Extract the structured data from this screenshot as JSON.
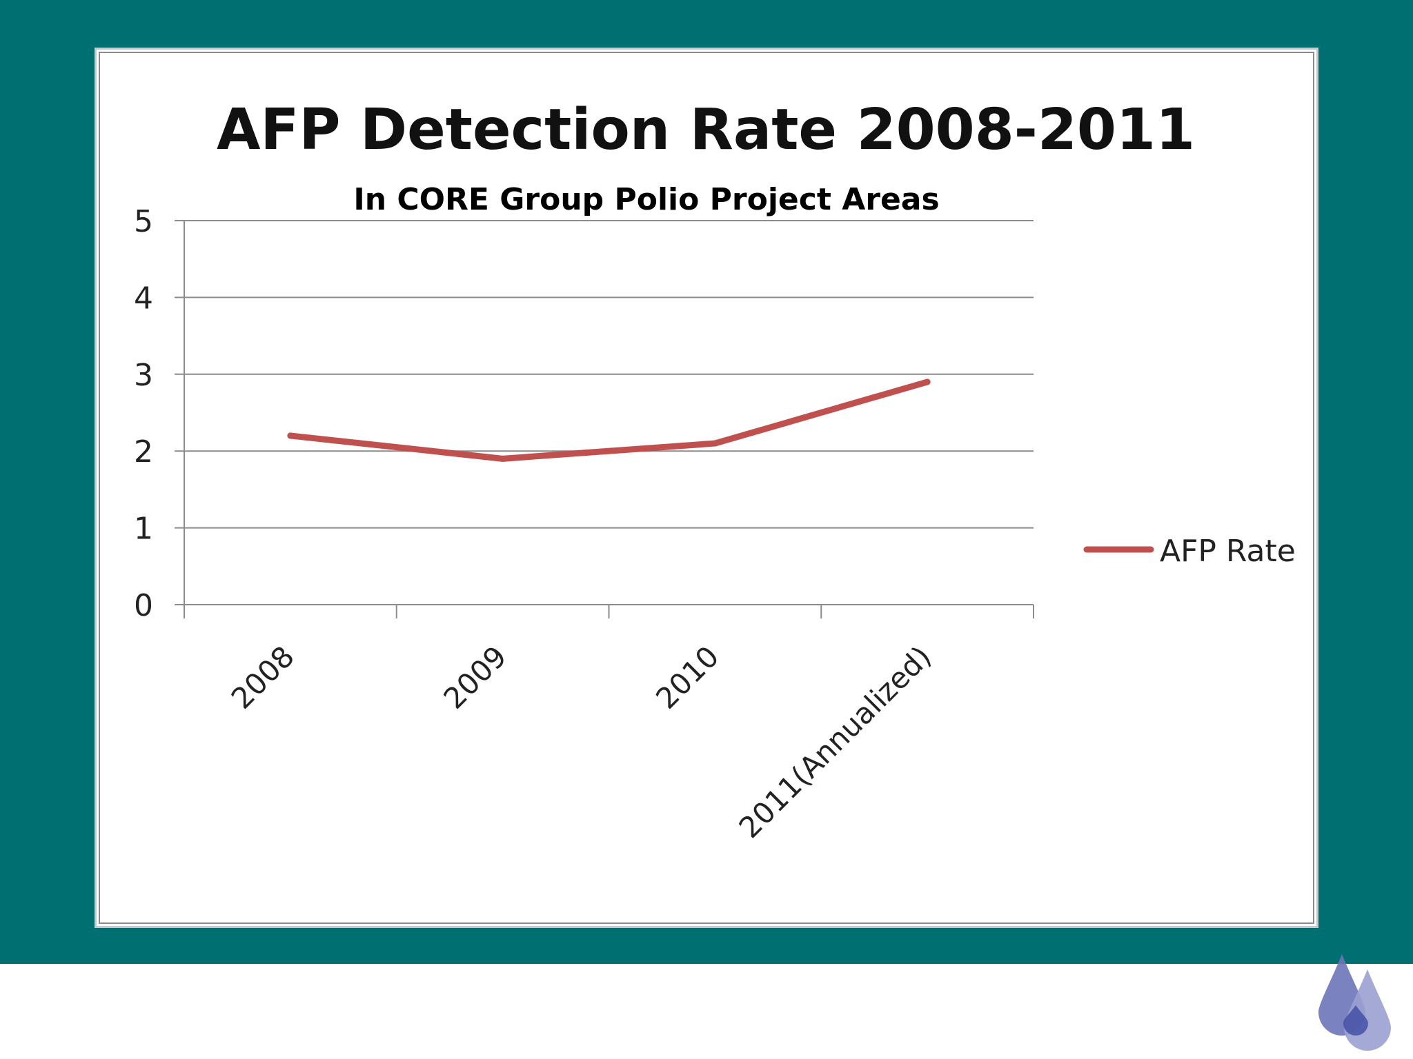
{
  "slide": {
    "background_color": "#006f72",
    "logo_icon": "water-drops-icon",
    "logo_colors": [
      "#6b74b8",
      "#3a46a0",
      "#9aa0d0"
    ]
  },
  "chart_data": {
    "type": "line",
    "title": "AFP Detection Rate 2008-2011",
    "subtitle": "In CORE Group Polio Project Areas",
    "categories": [
      "2008",
      "2009",
      "2010",
      "2011(Annualized)"
    ],
    "series": [
      {
        "name": "AFP Rate",
        "values": [
          2.2,
          1.9,
          2.1,
          2.9
        ],
        "color": "#c0504d"
      }
    ],
    "y_ticks": [
      "0",
      "1",
      "2",
      "3",
      "4",
      "5"
    ],
    "ylim": [
      0,
      5
    ],
    "grid": true,
    "legend_position": "right"
  }
}
